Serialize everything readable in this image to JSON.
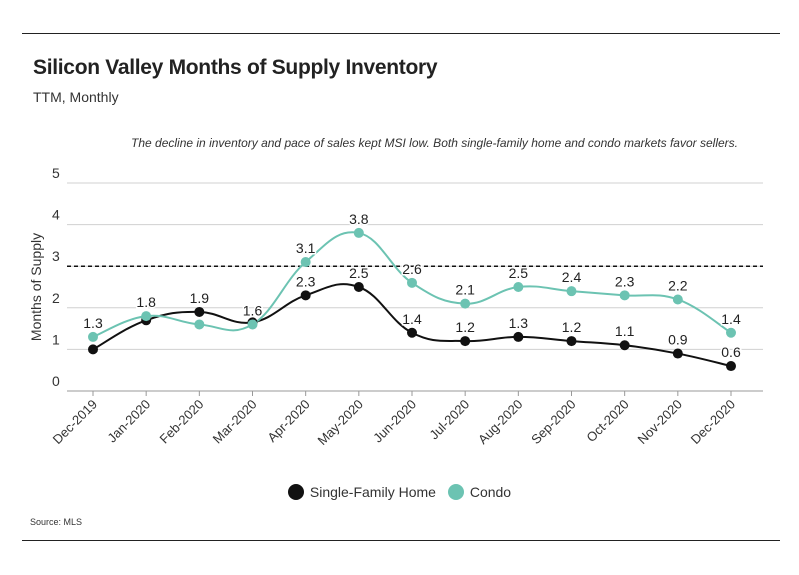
{
  "header": {
    "title": "Silicon Valley Months of Supply Inventory",
    "subtitle": "TTM, Monthly",
    "annotation": "The decline in inventory and pace of sales kept MSI low. Both single-family home and condo markets favor sellers."
  },
  "footer": {
    "source": "Source:  MLS"
  },
  "colors": {
    "sfh": "#111111",
    "condo": "#6cc3b2",
    "grid": "#d0d0d0",
    "axis": "#222222"
  },
  "chart_data": {
    "type": "line",
    "categories": [
      "Dec-2019",
      "Jan-2020",
      "Feb-2020",
      "Mar-2020",
      "Apr-2020",
      "May-2020",
      "Jun-2020",
      "Jul-2020",
      "Aug-2020",
      "Sep-2020",
      "Oct-2020",
      "Nov-2020",
      "Dec-2020"
    ],
    "series": [
      {
        "name": "Single-Family Home",
        "values": [
          1.0,
          1.7,
          1.9,
          1.65,
          2.3,
          2.5,
          1.4,
          1.2,
          1.3,
          1.2,
          1.1,
          0.9,
          0.6
        ],
        "labels": [
          "",
          "",
          "1.9",
          "",
          "2.3",
          "2.5",
          "1.4",
          "1.2",
          "1.3",
          "1.2",
          "1.1",
          "0.9",
          "0.6"
        ]
      },
      {
        "name": "Condo",
        "values": [
          1.3,
          1.8,
          1.6,
          1.6,
          3.1,
          3.8,
          2.6,
          2.1,
          2.5,
          2.4,
          2.3,
          2.2,
          1.4
        ],
        "labels": [
          "1.3",
          "1.8",
          "",
          "1.6",
          "3.1",
          "3.8",
          "2.6",
          "2.1",
          "2.5",
          "2.4",
          "2.3",
          "2.2",
          "1.4"
        ]
      }
    ],
    "ylabel": "Months of Supply",
    "yticks": [
      "0",
      "1",
      "2",
      "3",
      "4",
      "5"
    ],
    "ylim": [
      0,
      5
    ],
    "reference_line": 3,
    "legend": "bottom-center"
  }
}
